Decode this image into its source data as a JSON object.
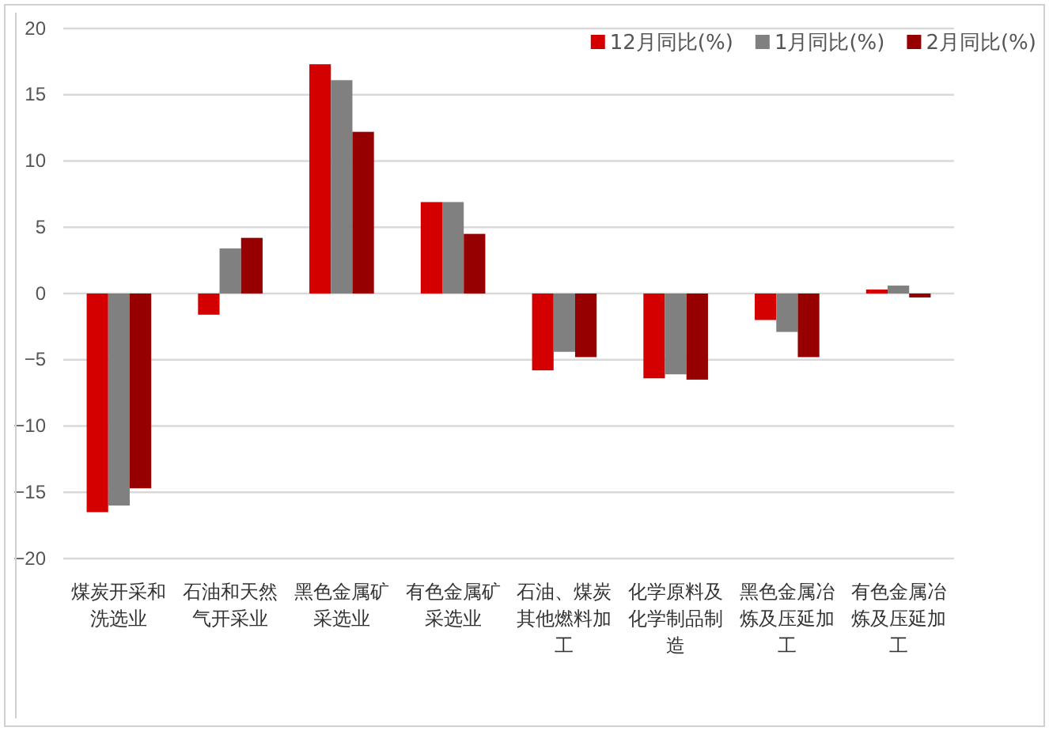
{
  "chart_data": {
    "type": "bar",
    "categories": [
      "煤炭开采和洗选业",
      "石油和天然气开采业",
      "黑色金属矿采选业",
      "有色金属矿采选业",
      "石油、煤炭其他燃料加工",
      "化学原料及化学制品制造",
      "黑色金属冶炼及压延加工",
      "有色金属冶炼及压延加工"
    ],
    "series": [
      {
        "name": "12月同比(%)",
        "color": "#d40000",
        "values": [
          -16.5,
          -1.6,
          17.3,
          6.9,
          -5.8,
          -6.4,
          -2.0,
          0.3
        ]
      },
      {
        "name": "1月同比(%)",
        "color": "#808080",
        "values": [
          -16.0,
          3.4,
          16.1,
          6.9,
          -4.4,
          -6.1,
          -2.9,
          0.6
        ]
      },
      {
        "name": "2月同比(%)",
        "color": "#960000",
        "values": [
          -14.7,
          4.2,
          12.2,
          4.5,
          -4.8,
          -6.5,
          -4.8,
          -0.3
        ]
      }
    ],
    "ylim": [
      -20,
      20
    ],
    "yticks": [
      {
        "value": -20,
        "label": "−20"
      },
      {
        "value": -15,
        "label": "−15"
      },
      {
        "value": -10,
        "label": "−10"
      },
      {
        "value": -5,
        "label": "−5"
      },
      0,
      5,
      10,
      15,
      20
    ],
    "grid": "y",
    "legend": "top right"
  }
}
